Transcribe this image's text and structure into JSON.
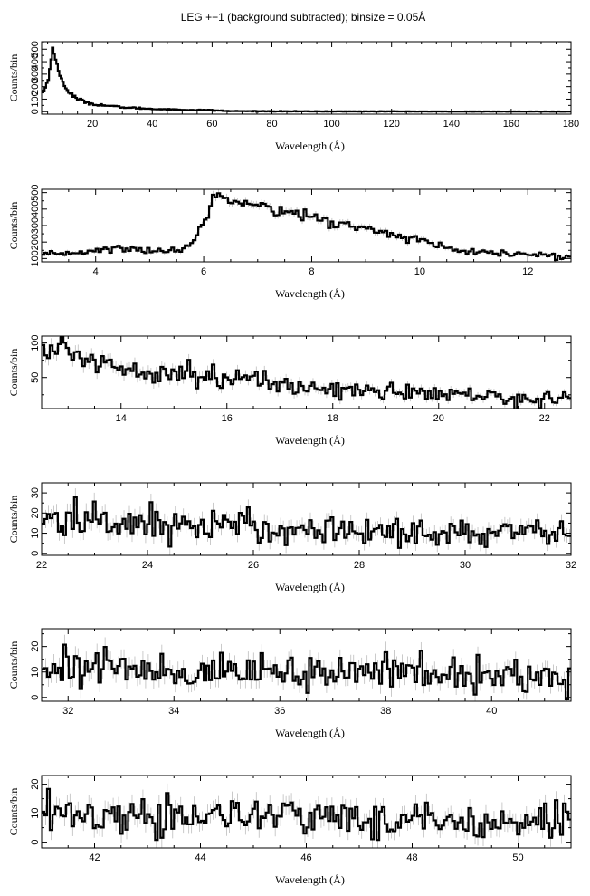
{
  "title": "LEG +−1 (background subtracted); binsize = 0.05Å",
  "chart_data": [
    {
      "type": "line",
      "title": "LEG +−1 (background subtracted); binsize = 0.05Å",
      "xlabel": "Wavelength (Å)",
      "ylabel": "Counts/bin",
      "xlim": [
        3,
        180
      ],
      "ylim": [
        -20,
        560
      ],
      "xticks": [
        20,
        40,
        60,
        80,
        100,
        120,
        140,
        160,
        180
      ],
      "yticks": [
        0,
        100,
        200,
        300,
        400,
        500
      ],
      "binsize": 0.05,
      "series": [
        {
          "x": [
            3,
            4,
            5,
            6,
            6.5,
            7,
            8,
            9,
            10,
            12,
            15,
            20,
            30,
            40,
            50,
            60,
            65,
            80,
            100,
            120,
            140,
            160,
            180
          ],
          "values": [
            150,
            180,
            240,
            380,
            545,
            470,
            380,
            300,
            240,
            160,
            100,
            60,
            35,
            22,
            15,
            12,
            5,
            3,
            2,
            2,
            1,
            1,
            1
          ]
        }
      ]
    },
    {
      "type": "line",
      "xlabel": "Wavelength (Å)",
      "ylabel": "Counts/bin",
      "xlim": [
        3,
        12.8
      ],
      "ylim": [
        80,
        520
      ],
      "xticks": [
        4,
        6,
        8,
        10,
        12
      ],
      "yticks": [
        100,
        200,
        300,
        400,
        500
      ],
      "yticklabels": [
        "100",
        "200",
        "300",
        "400",
        "500"
      ],
      "series": [
        {
          "x": [
            3.0,
            3.5,
            4.0,
            4.5,
            5.0,
            5.5,
            5.8,
            6.0,
            6.2,
            6.5,
            6.8,
            7.0,
            7.5,
            8.0,
            8.5,
            9.0,
            9.5,
            10.0,
            10.5,
            11.0,
            11.5,
            12.0,
            12.5,
            12.8
          ],
          "values": [
            115,
            135,
            150,
            160,
            150,
            145,
            200,
            330,
            470,
            480,
            450,
            420,
            390,
            350,
            310,
            280,
            250,
            210,
            160,
            135,
            130,
            125,
            115,
            110
          ]
        }
      ]
    },
    {
      "type": "line",
      "xlabel": "Wavelength (Å)",
      "ylabel": "Counts/bin",
      "xlim": [
        12.5,
        22.5
      ],
      "ylim": [
        5,
        110
      ],
      "xticks": [
        14,
        16,
        18,
        20,
        22
      ],
      "yticks": [
        50,
        100
      ],
      "series": [
        {
          "x": [
            12.5,
            13.0,
            13.5,
            14.0,
            14.5,
            15.0,
            15.5,
            16.0,
            16.5,
            17.0,
            17.5,
            18.0,
            18.5,
            19.0,
            19.5,
            20.0,
            20.5,
            21.0,
            21.5,
            22.0,
            22.5
          ],
          "values": [
            95,
            85,
            75,
            65,
            62,
            58,
            55,
            50,
            45,
            40,
            36,
            34,
            32,
            30,
            28,
            26,
            24,
            22,
            20,
            19,
            18
          ]
        }
      ]
    },
    {
      "type": "line",
      "xlabel": "Wavelength (Å)",
      "ylabel": "Counts/bin",
      "xlim": [
        22,
        32
      ],
      "ylim": [
        -1,
        35
      ],
      "xticks": [
        22,
        24,
        26,
        28,
        30,
        32
      ],
      "yticks": [
        0,
        10,
        20,
        30
      ],
      "series": [
        {
          "x": [
            22,
            23,
            24,
            25,
            26,
            27,
            28,
            29,
            30,
            31,
            32
          ],
          "values": [
            17,
            16,
            15,
            14,
            13,
            12,
            11,
            11,
            10,
            10,
            10
          ]
        }
      ]
    },
    {
      "type": "line",
      "xlabel": "Wavelength (Å)",
      "ylabel": "Counts/bin",
      "xlim": [
        31.5,
        41.5
      ],
      "ylim": [
        -1.5,
        27
      ],
      "xticks": [
        32,
        34,
        36,
        38,
        40
      ],
      "yticks": [
        0,
        10,
        20
      ],
      "series": [
        {
          "x": [
            31.5,
            32.5,
            33.5,
            34.5,
            35.5,
            36.5,
            37.5,
            38.0,
            38.5,
            39.5,
            40.5,
            41.5
          ],
          "values": [
            13,
            12,
            11,
            10,
            10,
            9,
            9,
            14,
            9,
            9,
            8,
            8
          ]
        }
      ]
    },
    {
      "type": "line",
      "xlabel": "Wavelength (Å)",
      "ylabel": "Counts/bin",
      "xlim": [
        41,
        51
      ],
      "ylim": [
        -2,
        23
      ],
      "xticks": [
        42,
        44,
        46,
        48,
        50
      ],
      "yticks": [
        0,
        10,
        20
      ],
      "series": [
        {
          "x": [
            41,
            42,
            43,
            44,
            45,
            46,
            47,
            48,
            49,
            50,
            51
          ],
          "values": [
            10,
            9,
            9,
            9,
            9,
            9,
            8,
            8,
            8,
            8,
            8
          ]
        }
      ]
    }
  ]
}
